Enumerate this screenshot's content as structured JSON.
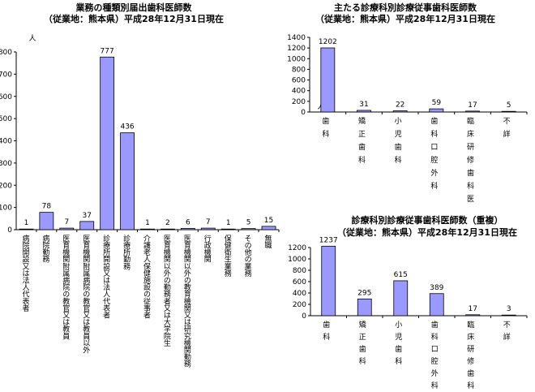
{
  "chart_data": [
    {
      "type": "bar",
      "title": "業務の種類別届出歯科医師数",
      "subtitle": "（従業地：熊本県）平成28年12月31日現在",
      "ylabel": "人",
      "ylim": [
        0,
        800
      ],
      "yticks": [
        0,
        100,
        200,
        300,
        400,
        500,
        600,
        700,
        800
      ],
      "categories": [
        "病院開設又は法人代表者",
        "病院勤務",
        "医育機関附属病院の教官又は教員",
        "医育機関附属病院の教官又は教員以外",
        "診療所開設又は法人代表者",
        "診療所勤務",
        "介護老人保健施設の従事者",
        "医育機関以外の勤務者又は大学院生",
        "医育機関以外の教育機関又は研究機関勤務",
        "行政機関",
        "保健衛生業務",
        "その他の業務",
        "無職"
      ],
      "values": [
        1,
        78,
        7,
        37,
        777,
        436,
        1,
        2,
        6,
        7,
        1,
        5,
        15
      ]
    },
    {
      "type": "bar",
      "title": "主たる診療科別診療従事歯科医師数",
      "subtitle": "（従業地：熊本県）平成28年12月31日現在",
      "ylabel": "人",
      "ylim": [
        0,
        1400
      ],
      "yticks": [
        0,
        200,
        400,
        600,
        800,
        1000,
        1200,
        1400
      ],
      "categories": [
        "歯科",
        "矯正歯科",
        "小児歯科",
        "歯科口腔外科",
        "臨床研修歯科医",
        "不詳"
      ],
      "values": [
        1202,
        31,
        22,
        59,
        17,
        5
      ]
    },
    {
      "type": "bar",
      "title": "診療科別診療従事歯科医師数（重複）",
      "subtitle": "（従業地：熊本県）平成28年12月31日現在",
      "ylabel": "",
      "ylim": [
        0,
        1200
      ],
      "yticks": [
        0,
        200,
        400,
        600,
        800,
        1000,
        1200
      ],
      "categories": [
        "歯科",
        "矯正歯科",
        "小児歯科",
        "歯科口腔外科",
        "臨床研修歯科医",
        "不詳"
      ],
      "values": [
        1237,
        295,
        615,
        389,
        17,
        3
      ]
    }
  ]
}
